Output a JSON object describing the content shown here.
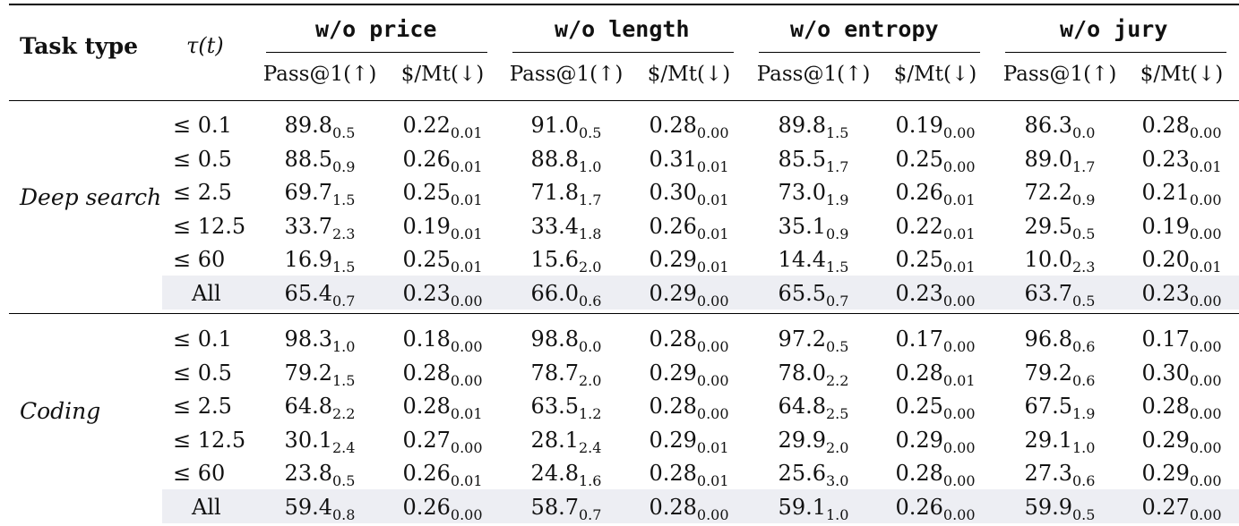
{
  "header": {
    "task_type": "Task type",
    "tau": "τ(t)",
    "groups": [
      "w/o price",
      "w/o length",
      "w/o entropy",
      "w/o jury"
    ],
    "sub_cols": [
      "Pass@1(↑)",
      "$/Mt(↓)"
    ]
  },
  "sections": [
    {
      "label": "Deep search",
      "rows": [
        {
          "thr": "≤ 0.1",
          "cells": [
            [
              "89.8",
              "0.5"
            ],
            [
              "0.22",
              "0.01"
            ],
            [
              "91.0",
              "0.5"
            ],
            [
              "0.28",
              "0.00"
            ],
            [
              "89.8",
              "1.5"
            ],
            [
              "0.19",
              "0.00"
            ],
            [
              "86.3",
              "0.0"
            ],
            [
              "0.28",
              "0.00"
            ]
          ]
        },
        {
          "thr": "≤ 0.5",
          "cells": [
            [
              "88.5",
              "0.9"
            ],
            [
              "0.26",
              "0.01"
            ],
            [
              "88.8",
              "1.0"
            ],
            [
              "0.31",
              "0.01"
            ],
            [
              "85.5",
              "1.7"
            ],
            [
              "0.25",
              "0.00"
            ],
            [
              "89.0",
              "1.7"
            ],
            [
              "0.23",
              "0.01"
            ]
          ]
        },
        {
          "thr": "≤ 2.5",
          "cells": [
            [
              "69.7",
              "1.5"
            ],
            [
              "0.25",
              "0.01"
            ],
            [
              "71.8",
              "1.7"
            ],
            [
              "0.30",
              "0.01"
            ],
            [
              "73.0",
              "1.9"
            ],
            [
              "0.26",
              "0.01"
            ],
            [
              "72.2",
              "0.9"
            ],
            [
              "0.21",
              "0.00"
            ]
          ]
        },
        {
          "thr": "≤ 12.5",
          "cells": [
            [
              "33.7",
              "2.3"
            ],
            [
              "0.19",
              "0.01"
            ],
            [
              "33.4",
              "1.8"
            ],
            [
              "0.26",
              "0.01"
            ],
            [
              "35.1",
              "0.9"
            ],
            [
              "0.22",
              "0.01"
            ],
            [
              "29.5",
              "0.5"
            ],
            [
              "0.19",
              "0.00"
            ]
          ]
        },
        {
          "thr": "≤ 60",
          "cells": [
            [
              "16.9",
              "1.5"
            ],
            [
              "0.25",
              "0.01"
            ],
            [
              "15.6",
              "2.0"
            ],
            [
              "0.29",
              "0.01"
            ],
            [
              "14.4",
              "1.5"
            ],
            [
              "0.25",
              "0.01"
            ],
            [
              "10.0",
              "2.3"
            ],
            [
              "0.20",
              "0.01"
            ]
          ]
        },
        {
          "thr": "All",
          "all": true,
          "cells": [
            [
              "65.4",
              "0.7"
            ],
            [
              "0.23",
              "0.00"
            ],
            [
              "66.0",
              "0.6"
            ],
            [
              "0.29",
              "0.00"
            ],
            [
              "65.5",
              "0.7"
            ],
            [
              "0.23",
              "0.00"
            ],
            [
              "63.7",
              "0.5"
            ],
            [
              "0.23",
              "0.00"
            ]
          ]
        }
      ]
    },
    {
      "label": "Coding",
      "rows": [
        {
          "thr": "≤ 0.1",
          "cells": [
            [
              "98.3",
              "1.0"
            ],
            [
              "0.18",
              "0.00"
            ],
            [
              "98.8",
              "0.0"
            ],
            [
              "0.28",
              "0.00"
            ],
            [
              "97.2",
              "0.5"
            ],
            [
              "0.17",
              "0.00"
            ],
            [
              "96.8",
              "0.6"
            ],
            [
              "0.17",
              "0.00"
            ]
          ]
        },
        {
          "thr": "≤ 0.5",
          "cells": [
            [
              "79.2",
              "1.5"
            ],
            [
              "0.28",
              "0.00"
            ],
            [
              "78.7",
              "2.0"
            ],
            [
              "0.29",
              "0.00"
            ],
            [
              "78.0",
              "2.2"
            ],
            [
              "0.28",
              "0.01"
            ],
            [
              "79.2",
              "0.6"
            ],
            [
              "0.30",
              "0.00"
            ]
          ]
        },
        {
          "thr": "≤ 2.5",
          "cells": [
            [
              "64.8",
              "2.2"
            ],
            [
              "0.28",
              "0.01"
            ],
            [
              "63.5",
              "1.2"
            ],
            [
              "0.28",
              "0.00"
            ],
            [
              "64.8",
              "2.5"
            ],
            [
              "0.25",
              "0.00"
            ],
            [
              "67.5",
              "1.9"
            ],
            [
              "0.28",
              "0.00"
            ]
          ]
        },
        {
          "thr": "≤ 12.5",
          "cells": [
            [
              "30.1",
              "2.4"
            ],
            [
              "0.27",
              "0.00"
            ],
            [
              "28.1",
              "2.4"
            ],
            [
              "0.29",
              "0.01"
            ],
            [
              "29.9",
              "2.0"
            ],
            [
              "0.29",
              "0.00"
            ],
            [
              "29.1",
              "1.0"
            ],
            [
              "0.29",
              "0.00"
            ]
          ]
        },
        {
          "thr": "≤ 60",
          "cells": [
            [
              "23.8",
              "0.5"
            ],
            [
              "0.26",
              "0.01"
            ],
            [
              "24.8",
              "1.6"
            ],
            [
              "0.28",
              "0.01"
            ],
            [
              "25.6",
              "3.0"
            ],
            [
              "0.28",
              "0.00"
            ],
            [
              "27.3",
              "0.6"
            ],
            [
              "0.29",
              "0.00"
            ]
          ]
        },
        {
          "thr": "All",
          "all": true,
          "cells": [
            [
              "59.4",
              "0.8"
            ],
            [
              "0.26",
              "0.00"
            ],
            [
              "58.7",
              "0.7"
            ],
            [
              "0.28",
              "0.00"
            ],
            [
              "59.1",
              "1.0"
            ],
            [
              "0.26",
              "0.00"
            ],
            [
              "59.9",
              "0.5"
            ],
            [
              "0.27",
              "0.00"
            ]
          ]
        }
      ]
    }
  ]
}
